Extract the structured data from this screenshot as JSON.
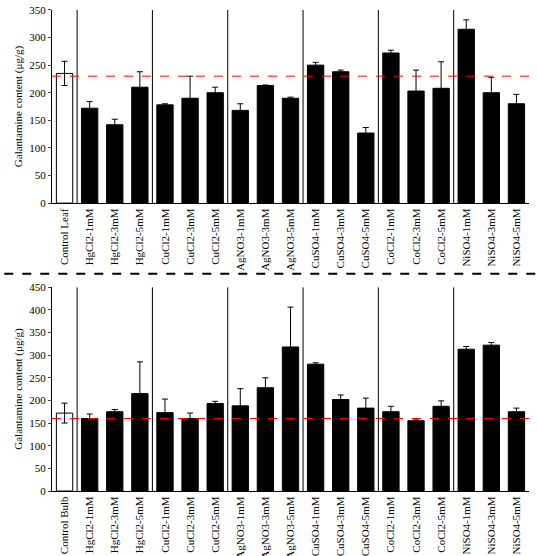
{
  "chart_data": [
    {
      "type": "bar",
      "y_label": "Galantamine content (μg/g)",
      "categories": [
        "Control Leaf",
        "HgCl2-1mM",
        "HgCl2-3mM",
        "HgCl2-5mM",
        "CuCl2-1mM",
        "CuCl2-3mM",
        "CuCl2-5mM",
        "AgNO3-1mM",
        "AgNO3-3mM",
        "AgNO3-5mM",
        "CuSO4-1mM",
        "CuSO4-3mM",
        "CuSO4-5mM",
        "CoCl2-1mM",
        "CoCl2-3mM",
        "CoCl2-5mM",
        "NiSO4-1mM",
        "NiSO4-3mM",
        "NiSO4-5mM"
      ],
      "values": [
        235,
        172,
        142,
        210,
        178,
        190,
        200,
        168,
        213,
        190,
        250,
        238,
        127,
        272,
        203,
        208,
        315,
        200,
        180
      ],
      "error": [
        22,
        12,
        10,
        28,
        2,
        40,
        10,
        12,
        1,
        2,
        5,
        3,
        10,
        5,
        38,
        48,
        17,
        28,
        17
      ],
      "colors": [
        "#ffffff",
        "#000000",
        "#000000",
        "#000000",
        "#000000",
        "#000000",
        "#000000",
        "#000000",
        "#000000",
        "#000000",
        "#000000",
        "#000000",
        "#000000",
        "#000000",
        "#000000",
        "#000000",
        "#000000",
        "#000000",
        "#000000"
      ],
      "reference_line": {
        "value": 230,
        "color": "#ff0000",
        "line_style": "dashed"
      },
      "ylim": [
        0,
        350
      ],
      "yticks": [
        0,
        50,
        100,
        150,
        200,
        250,
        300,
        350
      ],
      "grid": false
    },
    {
      "type": "bar",
      "y_label": "Galantamine content (μg/g)",
      "categories": [
        "Control Bulb",
        "HgCl2-1mM",
        "HgCl2-3mM",
        "HgCl2-5mM",
        "CuCl2-1mM",
        "CuCl2-3mM",
        "CuCl2-5mM",
        "AgNO3-1mM",
        "AgNO3-3mM",
        "AgNO3-5mM",
        "CuSO4-1mM",
        "CuSO4-3mM",
        "CuSO4-5mM",
        "CoCl2-1mM",
        "CoCl2-3mM",
        "CoCl2-5mM",
        "NiSO4-1mM",
        "NiSO4-3mM",
        "NiSO4-5mM"
      ],
      "values": [
        172,
        160,
        175,
        215,
        173,
        160,
        193,
        188,
        228,
        318,
        280,
        202,
        183,
        175,
        155,
        187,
        313,
        322,
        175
      ],
      "error": [
        22,
        10,
        5,
        70,
        30,
        12,
        5,
        38,
        22,
        88,
        3,
        10,
        22,
        12,
        2,
        12,
        6,
        6,
        8
      ],
      "colors": [
        "#ffffff",
        "#000000",
        "#000000",
        "#000000",
        "#000000",
        "#000000",
        "#000000",
        "#000000",
        "#000000",
        "#000000",
        "#000000",
        "#000000",
        "#000000",
        "#000000",
        "#000000",
        "#000000",
        "#000000",
        "#000000",
        "#000000"
      ],
      "reference_line": {
        "value": 160,
        "color": "#ff0000",
        "line_style": "dashed"
      },
      "ylim": [
        0,
        450
      ],
      "yticks": [
        0,
        50,
        100,
        150,
        200,
        250,
        300,
        350,
        400,
        450
      ],
      "grid": false
    }
  ]
}
